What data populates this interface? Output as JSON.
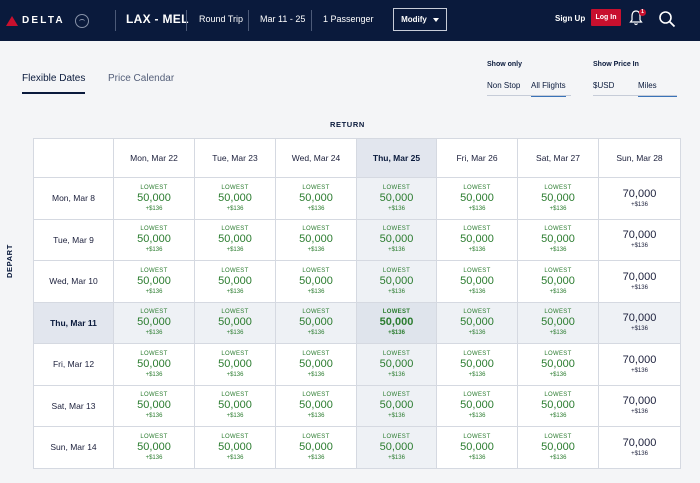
{
  "header": {
    "brand": "DELTA",
    "route": "LAX - MEL",
    "trip_type": "Round Trip",
    "dates": "Mar 11 - 25",
    "passengers": "1 Passenger",
    "modify_label": "Modify",
    "signup_label": "Sign Up",
    "login_label": "Log In",
    "notification_count": "1",
    "accent_color": "#c8102e",
    "bar_color": "#0a1a3c"
  },
  "tabs": [
    {
      "label": "Flexible Dates",
      "active": true
    },
    {
      "label": "Price Calendar",
      "active": false
    }
  ],
  "filters": {
    "show_only": {
      "label": "Show only",
      "options": [
        "Non Stop",
        "All Flights"
      ],
      "selected": "All Flights"
    },
    "show_price_in": {
      "label": "Show Price In",
      "options": [
        "$USD",
        "Miles"
      ],
      "selected": "Miles"
    }
  },
  "grid": {
    "return_label": "RETURN",
    "depart_label": "DEPART",
    "return_dates": [
      "Mon, Mar 22",
      "Tue, Mar 23",
      "Wed, Mar 24",
      "Thu, Mar 25",
      "Fri, Mar 26",
      "Sat, Mar 27",
      "Sun, Mar 28"
    ],
    "depart_dates": [
      "Mon, Mar 8",
      "Tue, Mar 9",
      "Wed, Mar 10",
      "Thu, Mar 11",
      "Fri, Mar 12",
      "Sat, Mar 13",
      "Sun, Mar 14"
    ],
    "selected_return_index": 3,
    "selected_depart_index": 3,
    "lowest_label": "LOWEST",
    "lowest_fare": {
      "miles": "50,000",
      "tax": "+$136"
    },
    "other_fare": {
      "miles": "70,000",
      "tax": "+$136"
    },
    "lowest_columns": [
      0,
      1,
      2,
      3,
      4,
      5
    ],
    "fare_color_lowest": "#2b7c2f"
  },
  "icons": [
    "delta-logo-icon",
    "skyteam-seal-icon",
    "chevron-down-icon",
    "bell-icon",
    "search-icon"
  ]
}
